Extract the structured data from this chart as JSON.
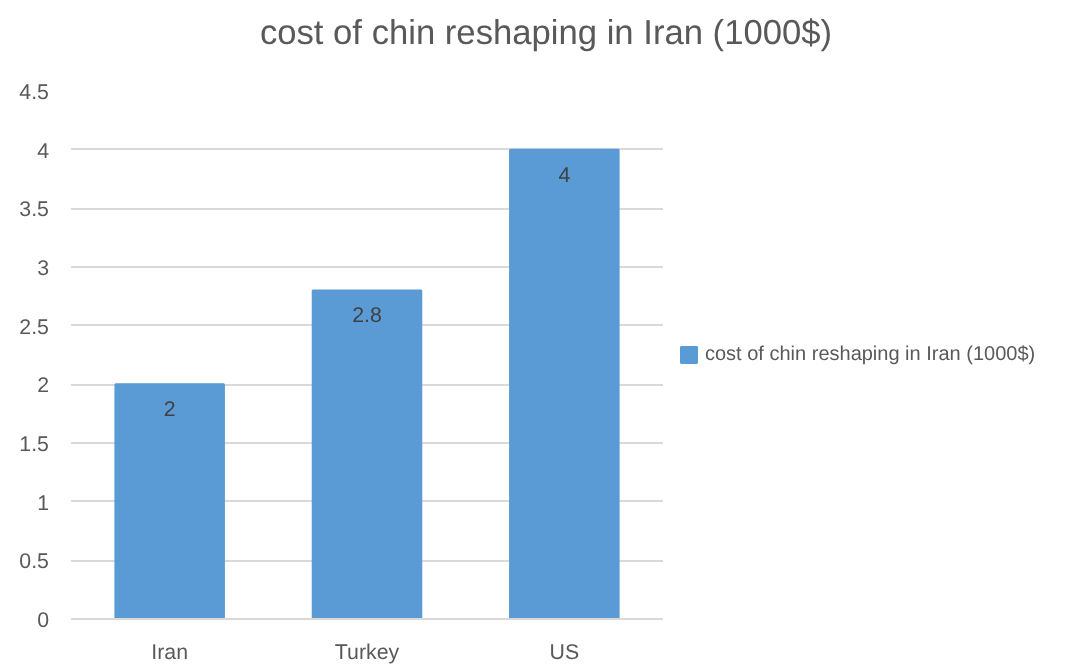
{
  "chart_data": {
    "type": "bar",
    "title": "cost of chin reshaping in Iran (1000$)",
    "categories": [
      "Iran",
      "Turkey",
      "US"
    ],
    "series": [
      {
        "name": "cost of chin reshaping in Iran (1000$)",
        "color": "#5b9bd5",
        "values": [
          2,
          2.8,
          4
        ]
      }
    ],
    "ylim": [
      0,
      4.5
    ],
    "yticks": [
      0,
      0.5,
      1,
      1.5,
      2,
      2.5,
      3,
      3.5,
      4,
      4.5
    ],
    "grid": "y",
    "legend": "right",
    "data_labels": true
  }
}
